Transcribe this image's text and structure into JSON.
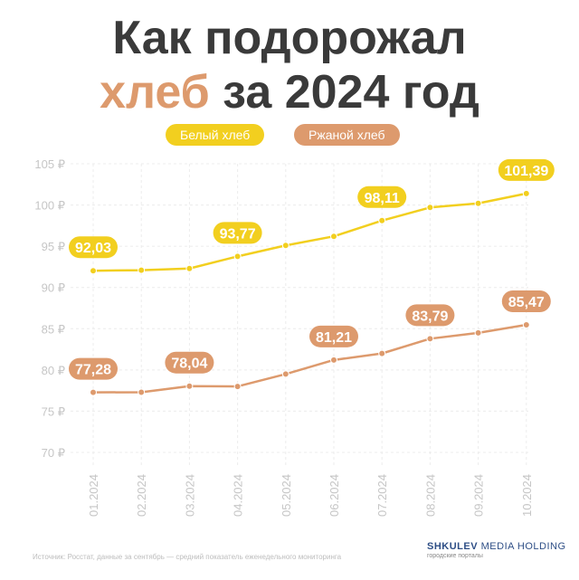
{
  "title": {
    "line1": "Как подорожал",
    "line2_accent": "хлеб",
    "line2_rest": " за 2024 год"
  },
  "chart_data": {
    "type": "line",
    "categories": [
      "01.2024",
      "02.2024",
      "03.2024",
      "04.2024",
      "05.2024",
      "06.2024",
      "07.2024",
      "08.2024",
      "09.2024",
      "10.2024"
    ],
    "y_ticks": [
      "70 ₽",
      "75 ₽",
      "80 ₽",
      "85 ₽",
      "90 ₽",
      "95 ₽",
      "100 ₽",
      "105 ₽"
    ],
    "ylim": [
      70,
      105
    ],
    "grid": true,
    "legend_position": "top-center",
    "series": [
      {
        "name": "Белый хлеб",
        "color": "#f2cf1f",
        "values": [
          92.03,
          92.1,
          92.3,
          93.77,
          95.1,
          96.2,
          98.11,
          99.7,
          100.2,
          101.39
        ],
        "labels": [
          {
            "index": 0,
            "text": "92,03"
          },
          {
            "index": 3,
            "text": "93,77"
          },
          {
            "index": 6,
            "text": "98,11"
          },
          {
            "index": 9,
            "text": "101,39"
          }
        ]
      },
      {
        "name": "Ржаной хлеб",
        "color": "#dd9a6d",
        "values": [
          77.28,
          77.3,
          78.04,
          78.0,
          79.5,
          81.21,
          82.0,
          83.79,
          84.5,
          85.47
        ],
        "labels": [
          {
            "index": 0,
            "text": "77,28"
          },
          {
            "index": 2,
            "text": "78,04"
          },
          {
            "index": 5,
            "text": "81,21"
          },
          {
            "index": 7,
            "text": "83,79"
          },
          {
            "index": 9,
            "text": "85,47"
          }
        ]
      }
    ]
  },
  "footer": {
    "source": "Источник: Росстат, данные за сентябрь — средний показатель еженедельного мониторинга",
    "brand_bold": "SHKULEV",
    "brand_rest": " MEDIA HOLDING",
    "brand_sub": "городские порталы"
  }
}
